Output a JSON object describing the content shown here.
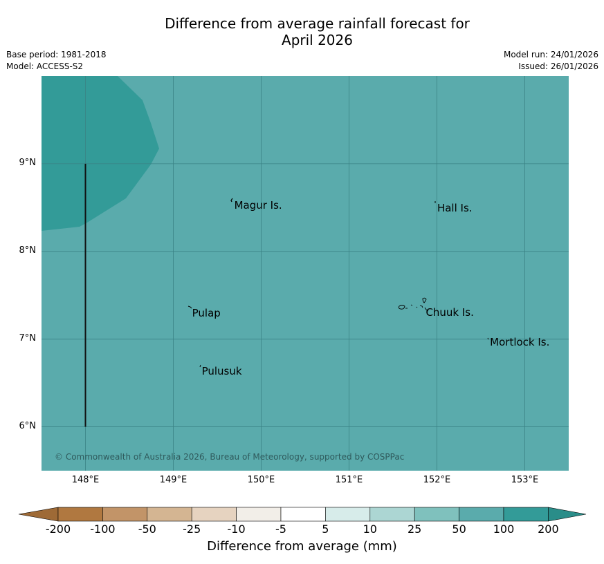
{
  "title_line1": "Difference from average rainfall forecast for",
  "title_line2": "April 2026",
  "base_period": "Base period: 1981-2018",
  "model": "Model: ACCESS-S2",
  "model_run": "Model run: 24/01/2026",
  "issued": "Issued: 26/01/2026",
  "copyright": "© Commonwealth of Australia 2026, Bureau of Meteorology, supported by COSPPac",
  "map": {
    "lon_range": [
      147.5,
      153.5
    ],
    "lat_range": [
      5.5,
      10.0
    ],
    "background_color": "#5aabac",
    "wet_region_color": "#339b98",
    "gridline_color": "#3a8285",
    "lat_ticks": [
      {
        "value": 9,
        "label": "9°N"
      },
      {
        "value": 8,
        "label": "8°N"
      },
      {
        "value": 7,
        "label": "7°N"
      },
      {
        "value": 6,
        "label": "6°N"
      }
    ],
    "lon_ticks": [
      {
        "value": 148,
        "label": "148°E"
      },
      {
        "value": 149,
        "label": "149°E"
      },
      {
        "value": 150,
        "label": "150°E"
      },
      {
        "value": 151,
        "label": "151°E"
      },
      {
        "value": 152,
        "label": "152°E"
      },
      {
        "value": 153,
        "label": "153°E"
      }
    ],
    "boundary_line": {
      "lon": 148.0,
      "lat_from": 6.0,
      "lat_to": 9.0
    },
    "places": [
      {
        "name": "Magur Is.",
        "lon": 149.67,
        "lat": 8.55
      },
      {
        "name": "Hall Is.",
        "lon": 151.98,
        "lat": 8.52
      },
      {
        "name": "Pulap",
        "lon": 149.19,
        "lat": 7.32
      },
      {
        "name": "Chuuk Is.",
        "lon": 151.85,
        "lat": 7.33
      },
      {
        "name": "Mortlock Is.",
        "lon": 152.58,
        "lat": 6.99
      },
      {
        "name": "Pulusuk",
        "lon": 149.3,
        "lat": 6.66
      }
    ]
  },
  "colorbar": {
    "title": "Difference from average (mm)",
    "low_extension_color": "#9e6a36",
    "high_extension_color": "#2a8d89",
    "segments": [
      "#b07840",
      "#c29468",
      "#d4b592",
      "#e6d3c0",
      "#f2eee8",
      "#ffffff",
      "#d7ecea",
      "#acd6d3",
      "#7fc1bd",
      "#5aabac",
      "#339b98"
    ],
    "labels": [
      "-200",
      "-100",
      "-50",
      "-25",
      "-10",
      "-5",
      "5",
      "10",
      "25",
      "50",
      "100",
      "200"
    ]
  }
}
